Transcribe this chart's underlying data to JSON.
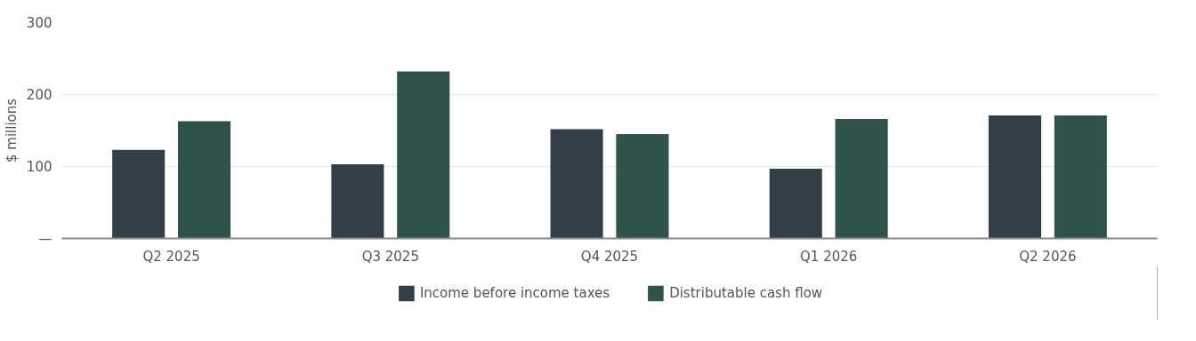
{
  "chart_data": {
    "type": "bar",
    "ylabel": "$ millions",
    "categories": [
      "Q2 2025",
      "Q3 2025",
      "Q4 2025",
      "Q1 2026",
      "Q2 2026"
    ],
    "series": [
      {
        "name": "Income before income taxes",
        "color": "#343e48",
        "values": [
          123,
          103,
          152,
          97,
          171
        ]
      },
      {
        "name": "Distributable cash flow",
        "color": "#2f524b",
        "values": [
          163,
          232,
          145,
          166,
          171
        ]
      }
    ],
    "ylim": [
      0,
      300
    ],
    "yticks": [
      {
        "value": 0,
        "label": "—"
      },
      100,
      200,
      300
    ],
    "grid": "y",
    "legend": "bottom"
  }
}
